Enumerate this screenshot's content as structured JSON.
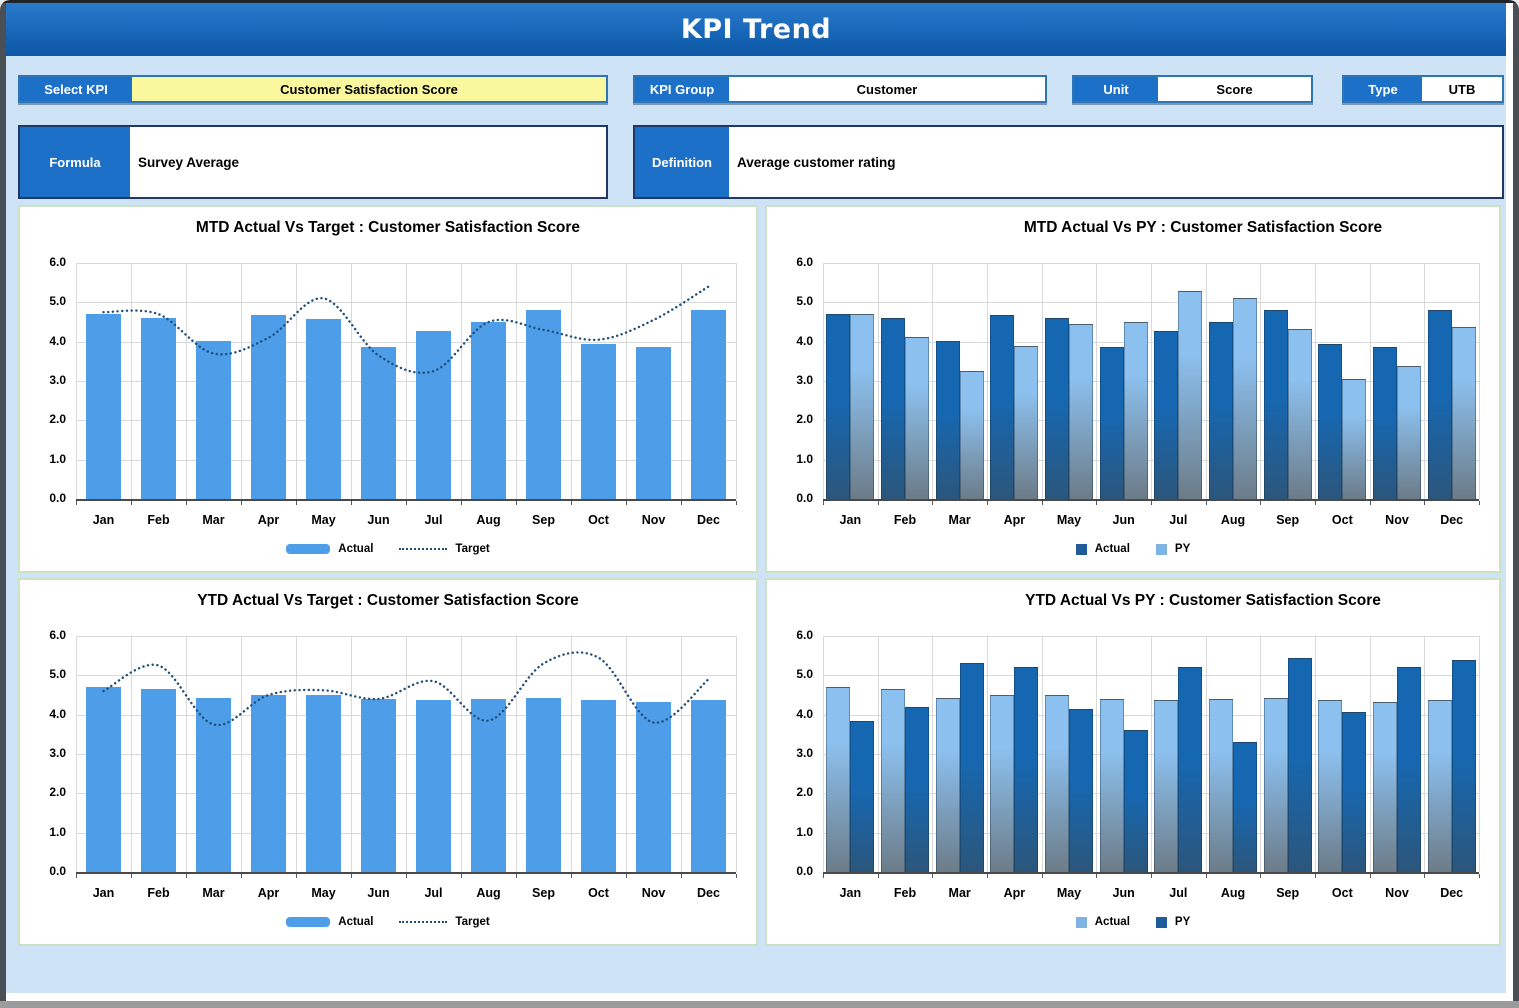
{
  "window": {
    "title": "KPI Trend"
  },
  "header": {
    "select_kpi": {
      "label": "Select KPI",
      "value": "Customer Satisfaction Score"
    },
    "kpi_group": {
      "label": "KPI Group",
      "value": "Customer"
    },
    "unit": {
      "label": "Unit",
      "value": "Score"
    },
    "type": {
      "label": "Type",
      "value": "UTB"
    },
    "formula": {
      "label": "Formula",
      "value": "Survey Average"
    },
    "definition": {
      "label": "Definition",
      "value": "Average customer rating"
    }
  },
  "colors": {
    "bar_light": "#4d9de8",
    "target_line": "#1f4e79",
    "dark_top": "#1667b1",
    "dark_bottom": "#2b567b",
    "light_top": "#8cc0ee",
    "light_bottom": "#6c7c88",
    "legend_dark": "#1f5c99",
    "legend_light": "#7eb3e3",
    "accent_blue": "#1d70c8",
    "background": "#cfe3f6",
    "panel_border": "#cbe2c6",
    "yellow_field": "#faf89e"
  },
  "chart_data": [
    {
      "type": "bar",
      "title": "MTD Actual Vs Target : Customer Satisfaction Score",
      "categories": [
        "Jan",
        "Feb",
        "Mar",
        "Apr",
        "May",
        "Jun",
        "Jul",
        "Aug",
        "Sep",
        "Oct",
        "Nov",
        "Dec"
      ],
      "ylim": [
        0,
        6
      ],
      "yticks": [
        "0.0",
        "1.0",
        "2.0",
        "3.0",
        "4.0",
        "5.0",
        "6.0"
      ],
      "grid": true,
      "legend_position": "bottom",
      "series": [
        {
          "name": "Actual",
          "kind": "bar",
          "fill": "light_solid",
          "swatch": "bar",
          "values": [
            4.7,
            4.6,
            4.02,
            4.68,
            4.58,
            3.87,
            4.28,
            4.5,
            4.8,
            3.95,
            3.86,
            4.8
          ]
        },
        {
          "name": "Target",
          "kind": "line",
          "fill": "target_line",
          "swatch": "dotted-line",
          "values": [
            4.75,
            4.7,
            3.7,
            4.1,
            5.1,
            3.65,
            3.25,
            4.5,
            4.3,
            4.05,
            4.55,
            5.4
          ]
        }
      ]
    },
    {
      "type": "bar",
      "title": "MTD Actual Vs PY : Customer Satisfaction Score",
      "categories": [
        "Jan",
        "Feb",
        "Mar",
        "Apr",
        "May",
        "Jun",
        "Jul",
        "Aug",
        "Sep",
        "Oct",
        "Nov",
        "Dec"
      ],
      "ylim": [
        0,
        6
      ],
      "yticks": [
        "0.0",
        "1.0",
        "2.0",
        "3.0",
        "4.0",
        "5.0",
        "6.0"
      ],
      "grid": true,
      "legend_position": "bottom",
      "series": [
        {
          "name": "Actual",
          "kind": "bar",
          "fill": "dark_gradient",
          "swatch": "square_dark",
          "values": [
            4.7,
            4.6,
            4.02,
            4.67,
            4.6,
            3.87,
            4.28,
            4.5,
            4.8,
            3.95,
            3.86,
            4.8
          ]
        },
        {
          "name": "PY",
          "kind": "bar",
          "fill": "light_gradient",
          "swatch": "square_light",
          "values": [
            4.7,
            4.12,
            3.25,
            3.9,
            4.45,
            4.5,
            5.3,
            5.12,
            4.32,
            3.05,
            3.38,
            4.38
          ]
        }
      ]
    },
    {
      "type": "bar",
      "title": "YTD Actual Vs Target : Customer Satisfaction Score",
      "categories": [
        "Jan",
        "Feb",
        "Mar",
        "Apr",
        "May",
        "Jun",
        "Jul",
        "Aug",
        "Sep",
        "Oct",
        "Nov",
        "Dec"
      ],
      "ylim": [
        0,
        6
      ],
      "yticks": [
        "0.0",
        "1.0",
        "2.0",
        "3.0",
        "4.0",
        "5.0",
        "6.0"
      ],
      "grid": true,
      "legend_position": "bottom",
      "series": [
        {
          "name": "Actual",
          "kind": "bar",
          "fill": "light_solid",
          "swatch": "bar",
          "values": [
            4.7,
            4.65,
            4.42,
            4.5,
            4.51,
            4.4,
            4.37,
            4.4,
            4.42,
            4.37,
            4.32,
            4.37
          ]
        },
        {
          "name": "Target",
          "kind": "line",
          "fill": "target_line",
          "swatch": "dotted-line",
          "values": [
            4.6,
            5.25,
            3.75,
            4.5,
            4.62,
            4.4,
            4.85,
            3.85,
            5.3,
            5.45,
            3.8,
            4.9
          ]
        }
      ]
    },
    {
      "type": "bar",
      "title": "YTD Actual Vs PY : Customer Satisfaction Score",
      "categories": [
        "Jan",
        "Feb",
        "Mar",
        "Apr",
        "May",
        "Jun",
        "Jul",
        "Aug",
        "Sep",
        "Oct",
        "Nov",
        "Dec"
      ],
      "ylim": [
        0,
        6
      ],
      "yticks": [
        "0.0",
        "1.0",
        "2.0",
        "3.0",
        "4.0",
        "5.0",
        "6.0"
      ],
      "grid": true,
      "legend_position": "bottom",
      "series": [
        {
          "name": "Actual",
          "kind": "bar",
          "fill": "light_gradient",
          "swatch": "square_light",
          "values": [
            4.7,
            4.65,
            4.42,
            4.5,
            4.51,
            4.4,
            4.37,
            4.4,
            4.42,
            4.37,
            4.32,
            4.37
          ]
        },
        {
          "name": "PY",
          "kind": "bar",
          "fill": "dark_gradient",
          "swatch": "square_dark",
          "values": [
            3.85,
            4.2,
            5.32,
            5.22,
            4.15,
            3.6,
            5.22,
            3.3,
            5.45,
            4.07,
            5.2,
            5.38
          ]
        }
      ]
    }
  ]
}
